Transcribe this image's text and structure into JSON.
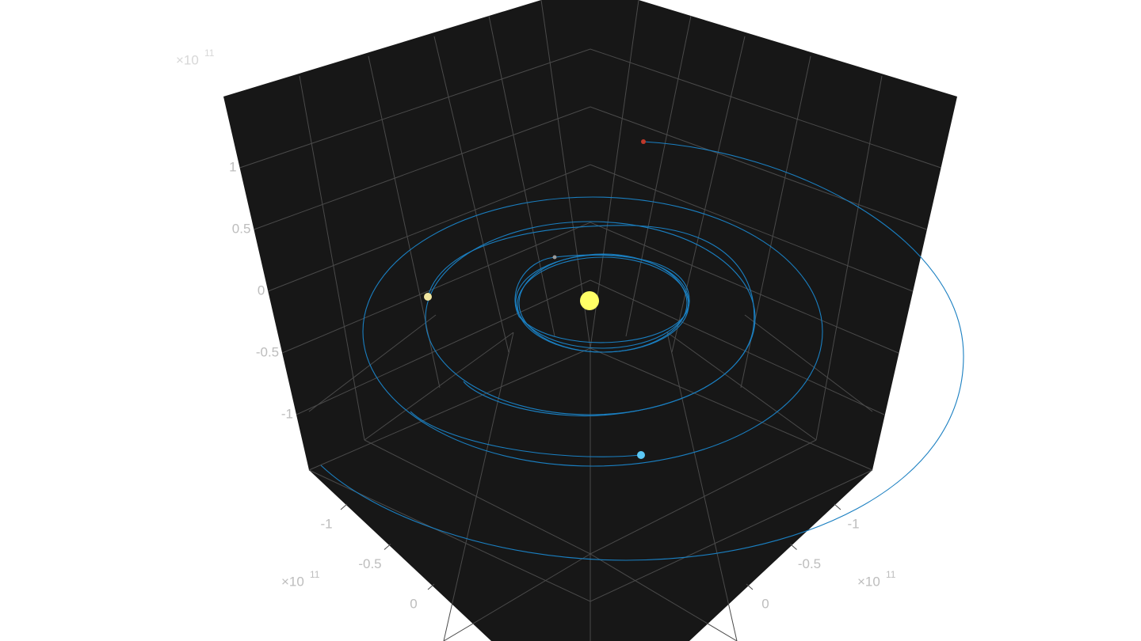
{
  "chart_data": {
    "type": "line3d",
    "xticks": [
      -1,
      -0.5,
      0
    ],
    "yticks": [
      -1,
      -0.5,
      0
    ],
    "zticks": [
      -1,
      -0.5,
      0,
      0.5,
      1
    ],
    "axis_multiplier": {
      "base": "×10",
      "exponent": "11"
    },
    "grid": true
  }
}
